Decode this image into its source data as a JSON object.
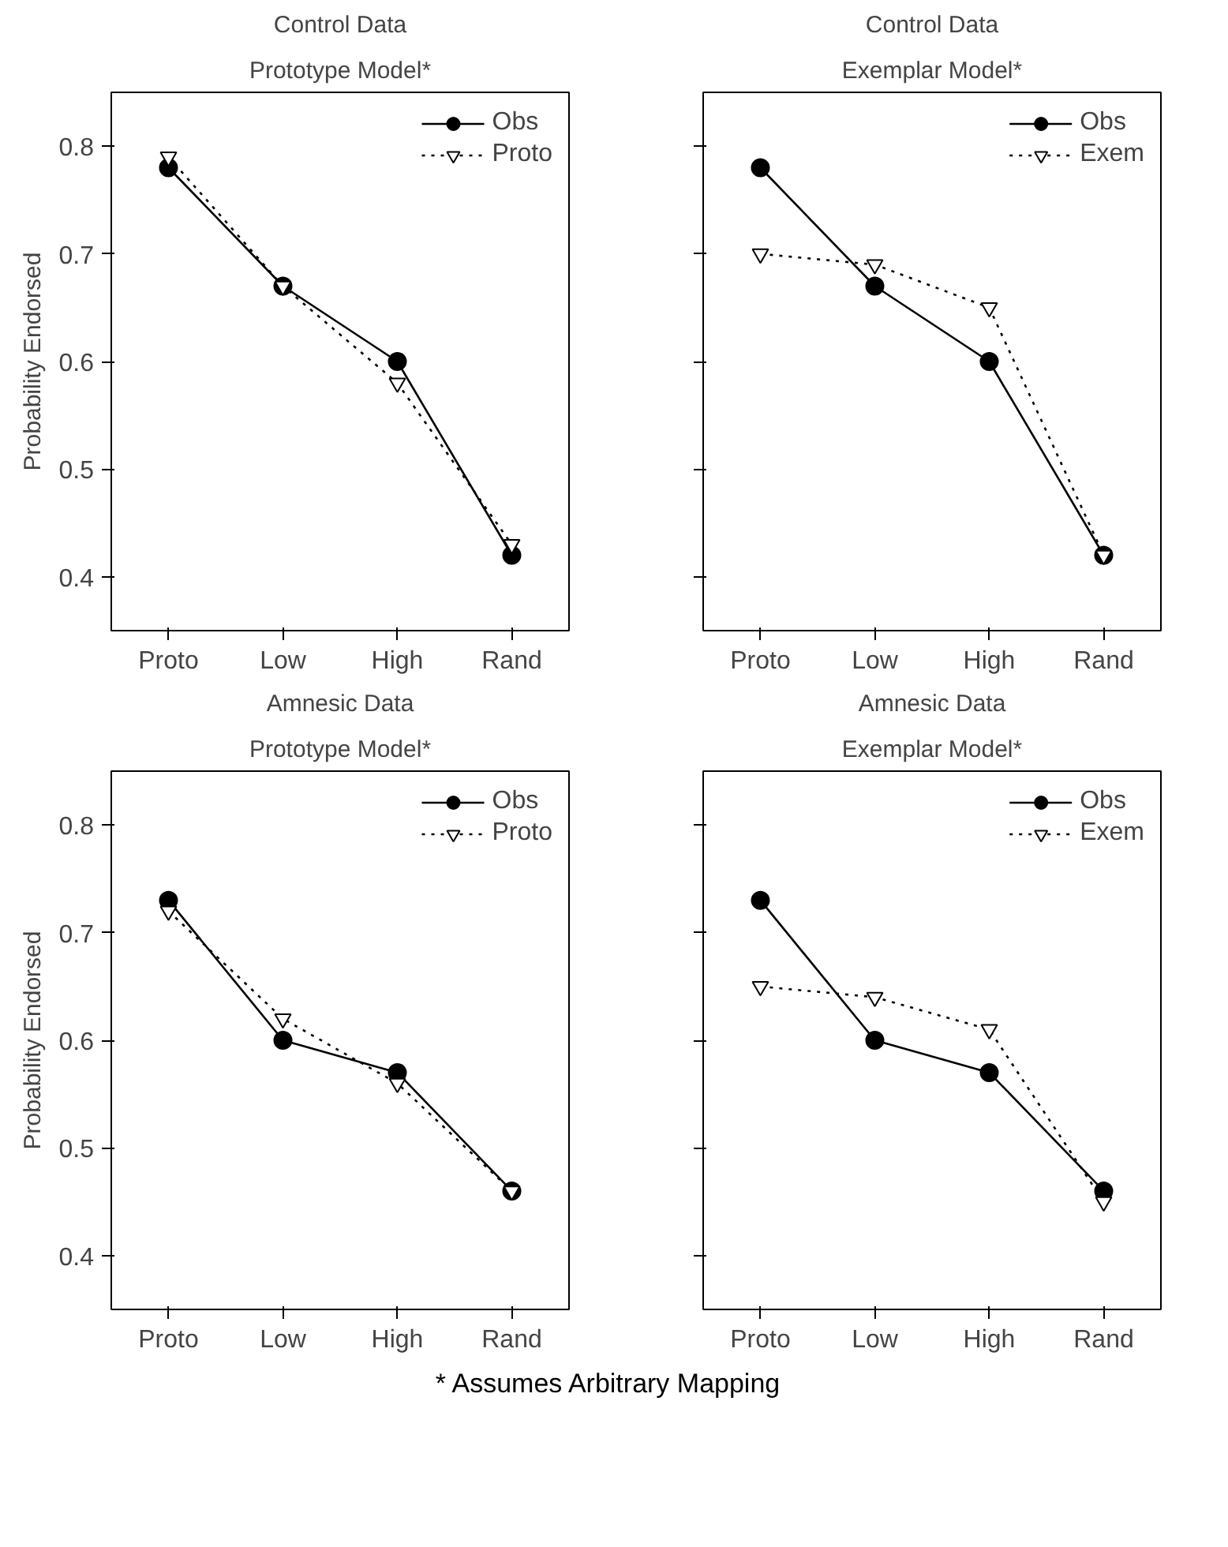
{
  "chart_data": [
    {
      "type": "line",
      "title": "Control Data",
      "subtitle": "Prototype Model*",
      "ylabel": "Probability Endorsed",
      "categories": [
        "Proto",
        "Low",
        "High",
        "Rand"
      ],
      "ylim": [
        0.35,
        0.85
      ],
      "yticks": [
        0.4,
        0.5,
        0.6,
        0.7,
        0.8
      ],
      "grid": false,
      "legend": "top right",
      "series": [
        {
          "name": "Obs",
          "color": "#000000",
          "marker": "circle",
          "line_style": "solid",
          "values": [
            0.78,
            0.67,
            0.6,
            0.42
          ]
        },
        {
          "name": "Proto",
          "color": "#000000",
          "marker": "triangle",
          "line_style": "dotted",
          "values": [
            0.79,
            0.67,
            0.58,
            0.43
          ]
        }
      ]
    },
    {
      "type": "line",
      "title": "Control Data",
      "subtitle": "Exemplar Model*",
      "categories": [
        "Proto",
        "Low",
        "High",
        "Rand"
      ],
      "ylim": [
        0.35,
        0.85
      ],
      "yticks": [
        0.4,
        0.5,
        0.6,
        0.7,
        0.8
      ],
      "tick_labels": "x",
      "grid": false,
      "legend": "top right",
      "series": [
        {
          "name": "Obs",
          "color": "#000000",
          "marker": "circle",
          "line_style": "solid",
          "values": [
            0.78,
            0.67,
            0.6,
            0.42
          ]
        },
        {
          "name": "Exem",
          "color": "#000000",
          "marker": "triangle",
          "line_style": "dotted",
          "values": [
            0.7,
            0.69,
            0.65,
            0.42
          ]
        }
      ]
    },
    {
      "type": "line",
      "title": "Amnesic Data",
      "subtitle": "Prototype Model*",
      "ylabel": "Probability Endorsed",
      "categories": [
        "Proto",
        "Low",
        "High",
        "Rand"
      ],
      "ylim": [
        0.35,
        0.85
      ],
      "yticks": [
        0.4,
        0.5,
        0.6,
        0.7,
        0.8
      ],
      "grid": false,
      "legend": "top right",
      "series": [
        {
          "name": "Obs",
          "color": "#000000",
          "marker": "circle",
          "line_style": "solid",
          "values": [
            0.73,
            0.6,
            0.57,
            0.46
          ]
        },
        {
          "name": "Proto",
          "color": "#000000",
          "marker": "triangle",
          "line_style": "dotted",
          "values": [
            0.72,
            0.62,
            0.56,
            0.46
          ]
        }
      ]
    },
    {
      "type": "line",
      "title": "Amnesic Data",
      "subtitle": "Exemplar Model*",
      "categories": [
        "Proto",
        "Low",
        "High",
        "Rand"
      ],
      "ylim": [
        0.35,
        0.85
      ],
      "yticks": [
        0.4,
        0.5,
        0.6,
        0.7,
        0.8
      ],
      "tick_labels": "x",
      "grid": false,
      "legend": "top right",
      "annotations": [
        "* Assumes Arbitrary Mapping"
      ],
      "series": [
        {
          "name": "Obs",
          "color": "#000000",
          "marker": "circle",
          "line_style": "solid",
          "values": [
            0.73,
            0.6,
            0.57,
            0.46
          ]
        },
        {
          "name": "Exem",
          "color": "#000000",
          "marker": "triangle",
          "line_style": "dotted",
          "values": [
            0.65,
            0.64,
            0.61,
            0.45
          ]
        }
      ]
    }
  ]
}
